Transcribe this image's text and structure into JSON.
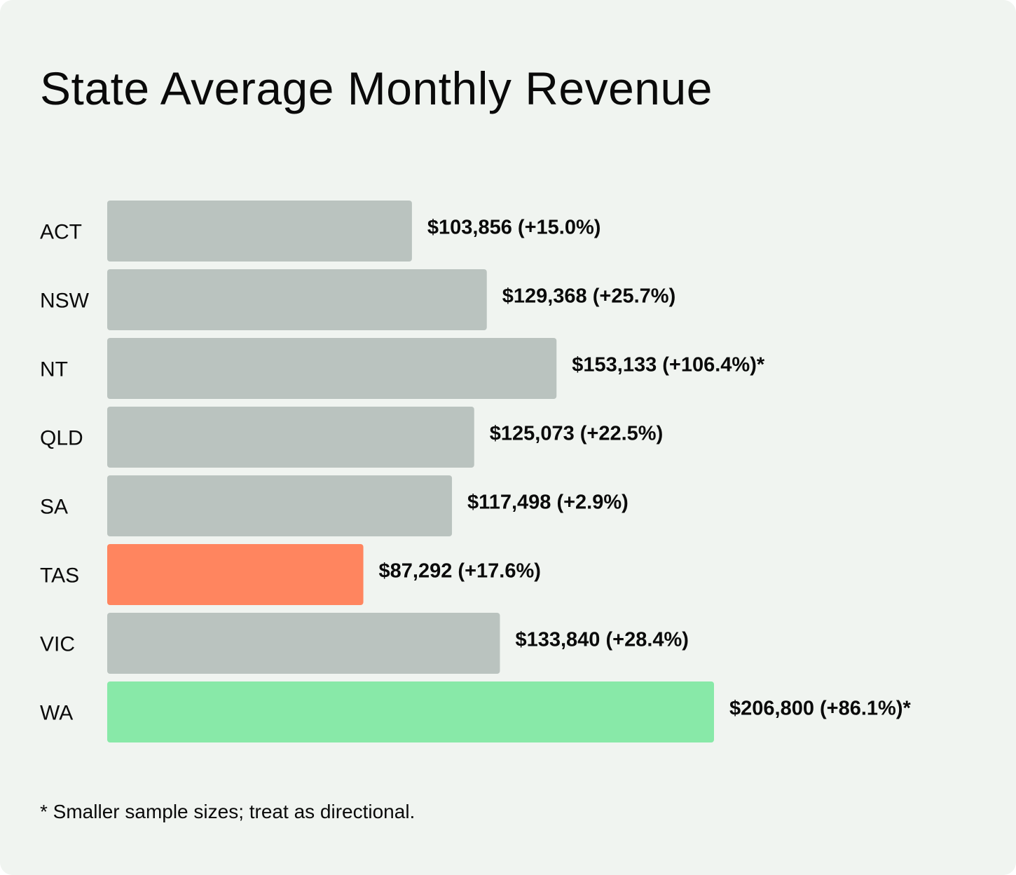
{
  "chart_data": {
    "type": "bar",
    "orientation": "horizontal",
    "title": "State Average Monthly Revenue",
    "categories": [
      "ACT",
      "NSW",
      "NT",
      "QLD",
      "SA",
      "TAS",
      "VIC",
      "WA"
    ],
    "values": [
      103856,
      129368,
      153133,
      125073,
      117498,
      87292,
      133840,
      206800
    ],
    "changes_pct": [
      15.0,
      25.7,
      106.4,
      22.5,
      2.9,
      17.6,
      28.4,
      86.1
    ],
    "data_labels": [
      "$103,856 (+15.0%)",
      "$129,368 (+25.7%)",
      "$153,133 (+106.4%)*",
      "$125,073 (+22.5%)",
      "$117,498 (+2.9%)",
      "$87,292 (+17.6%)",
      "$133,840 (+28.4%)",
      "$206,800 (+86.1%)*"
    ],
    "colors": {
      "default": "#bac3bf",
      "lowest": "#ff855f",
      "highest": "#88e9a8",
      "background": "#f0f4f0"
    },
    "bar_colors": [
      "default",
      "default",
      "default",
      "default",
      "default",
      "lowest",
      "default",
      "highest"
    ],
    "xlim": [
      0,
      206800
    ],
    "grid": false,
    "legend": "none",
    "xlabel": "",
    "ylabel": "",
    "footnote": "* Smaller sample sizes; treat as directional."
  }
}
